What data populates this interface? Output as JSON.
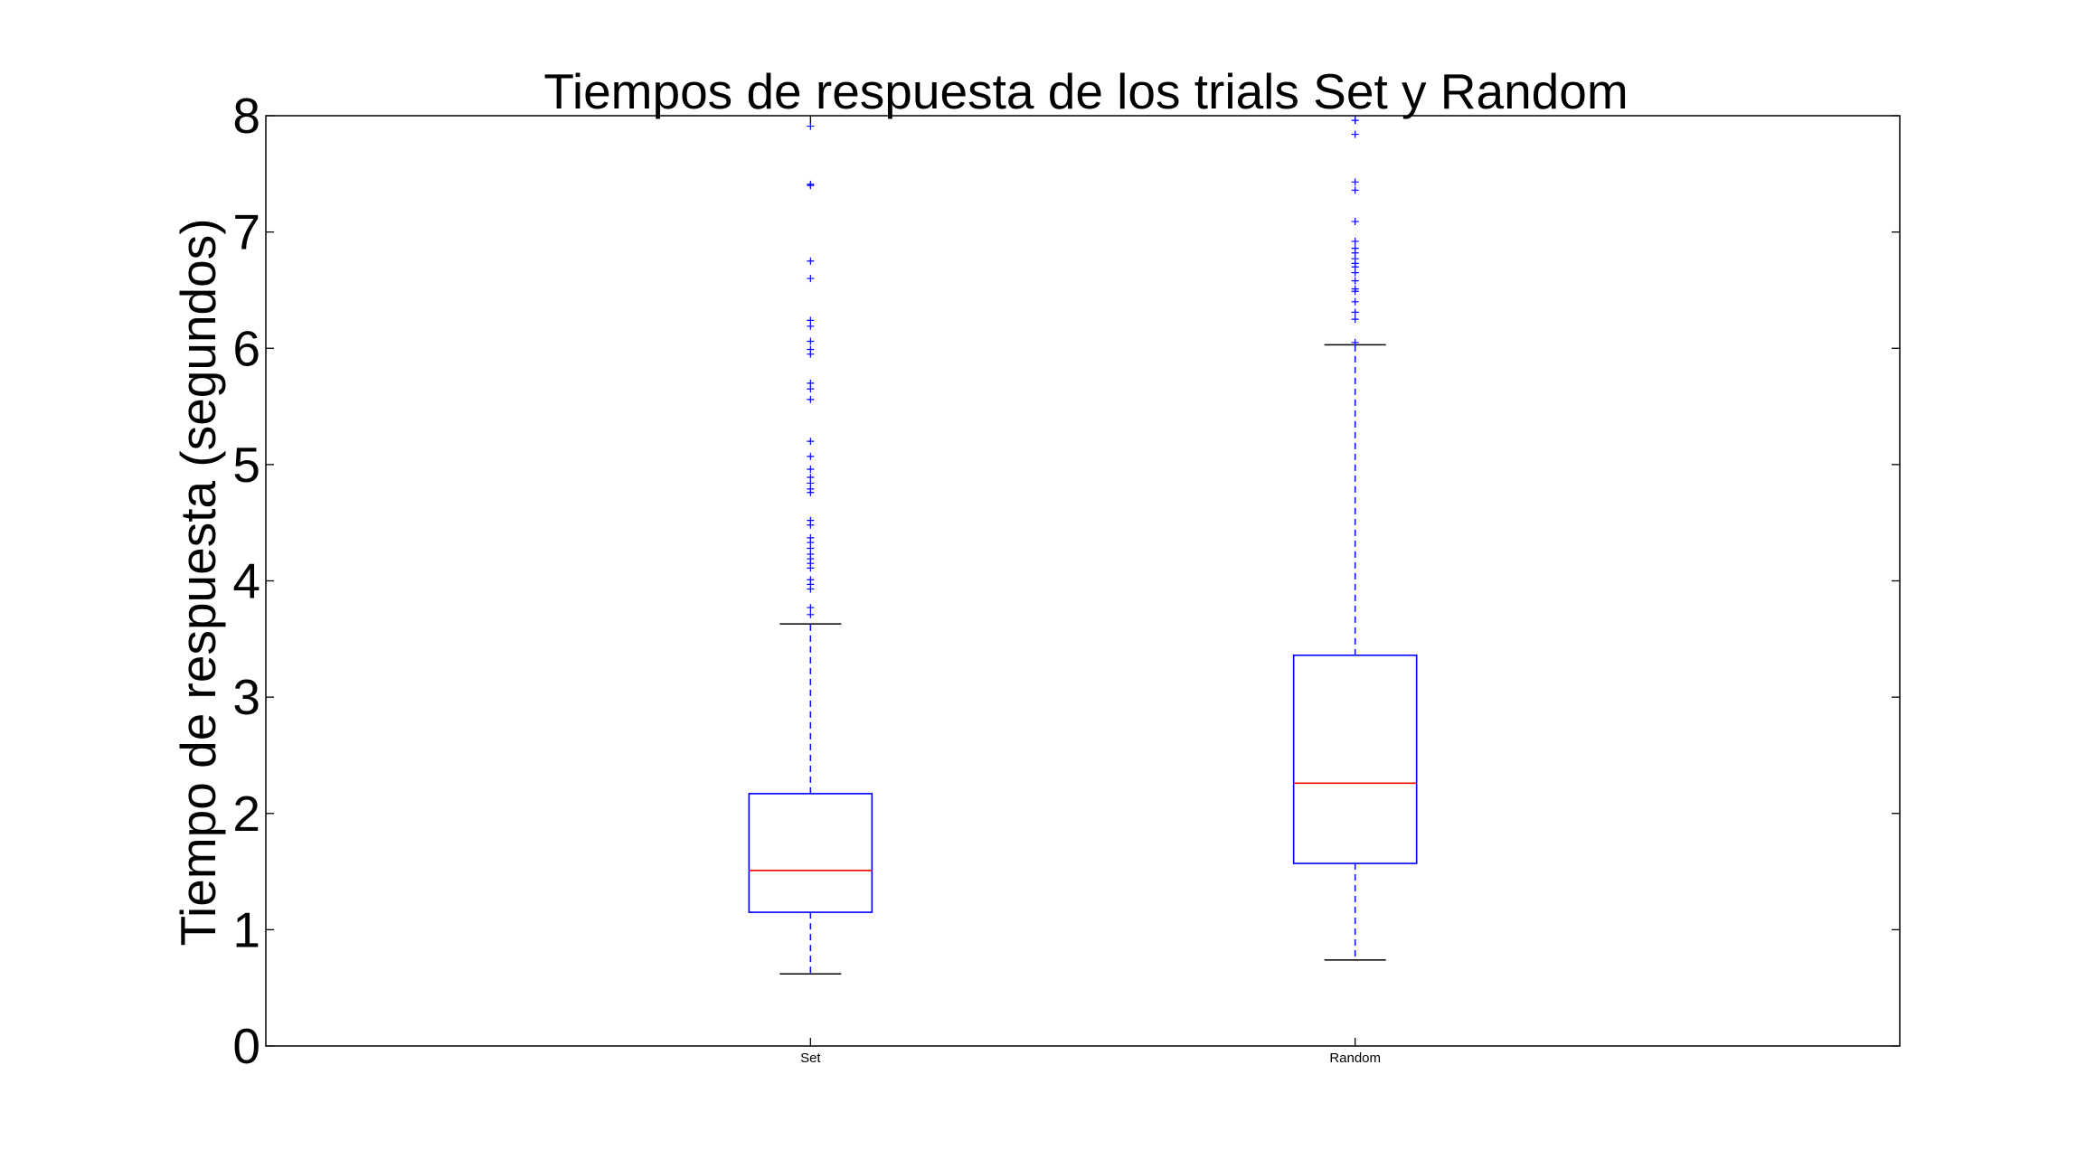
{
  "chart_data": {
    "type": "boxplot",
    "title": "Tiempos de respuesta de los trials Set y Random",
    "ylabel": "Tiempo de respuesta (segundos)",
    "xlabel": "",
    "ylim": [
      0,
      8
    ],
    "yticks": [
      0,
      1,
      2,
      3,
      4,
      5,
      6,
      7,
      8
    ],
    "categories": [
      "Set",
      "Random"
    ],
    "grid": false,
    "colors": {
      "box": "#0000ff",
      "median": "#ff0000",
      "whisker": "#0000ff",
      "cap": "#000000",
      "flier": "#0000ff",
      "axes": "#000000"
    },
    "boxes": [
      {
        "category": "Set",
        "whisker_low": 0.62,
        "q1": 1.15,
        "median": 1.51,
        "q3": 2.17,
        "whisker_high": 3.63,
        "outliers": [
          3.71,
          3.77,
          3.93,
          3.97,
          4.01,
          4.11,
          4.15,
          4.19,
          4.23,
          4.28,
          4.33,
          4.37,
          4.48,
          4.52,
          4.76,
          4.79,
          4.84,
          4.89,
          4.96,
          5.07,
          5.2,
          5.56,
          5.65,
          5.7,
          5.95,
          5.99,
          6.06,
          6.19,
          6.24,
          6.6,
          6.75,
          7.4,
          7.41,
          7.91
        ]
      },
      {
        "category": "Random",
        "whisker_low": 0.74,
        "q1": 1.57,
        "median": 2.26,
        "q3": 3.36,
        "whisker_high": 6.03,
        "outliers": [
          6.05,
          6.25,
          6.31,
          6.4,
          6.49,
          6.51,
          6.58,
          6.65,
          6.7,
          6.73,
          6.77,
          6.82,
          6.86,
          6.92,
          7.09,
          7.36,
          7.43,
          7.84,
          7.96
        ]
      }
    ]
  }
}
